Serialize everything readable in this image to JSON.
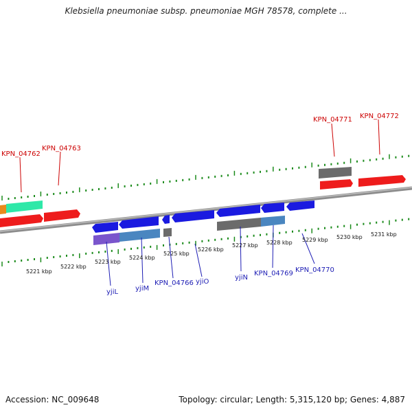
{
  "title": "Klebsiella pneumoniae subsp. pneumoniae MGH 78578, complete ...",
  "footer": {
    "accession": "Accession: NC_009648",
    "topology": "Topology: circular; Length: 5,315,120 bp; Genes: 4,887"
  },
  "colors": {
    "forward_gene": "#ee1c1c",
    "reverse_gene": "#1a1ae0",
    "gene_gray": "#6b6b6b",
    "gene_teal": "#2ee8a8",
    "gene_orange": "#e88a1c",
    "gene_purple": "#7a55cc",
    "gene_steel": "#4a86c0",
    "tick_green": "#1a8a1a",
    "label_red": "#cc0000",
    "label_blue": "#1c1cb4"
  },
  "kbp_labels": [
    "5221 kbp",
    "5222 kbp",
    "5223 kbp",
    "5224 kbp",
    "5225 kbp",
    "5226 kbp",
    "5227 kbp",
    "5228 kbp",
    "5229 kbp",
    "5230 kbp",
    "5231 kbp"
  ],
  "forward_gene_labels": [
    "KPN_04762",
    "KPN_04763",
    "KPN_04771",
    "KPN_04772"
  ],
  "reverse_gene_labels": [
    "yjiL",
    "yjiM",
    "KPN_04766",
    "yjiO",
    "yjiN",
    "KPN_04769",
    "KPN_04770"
  ]
}
